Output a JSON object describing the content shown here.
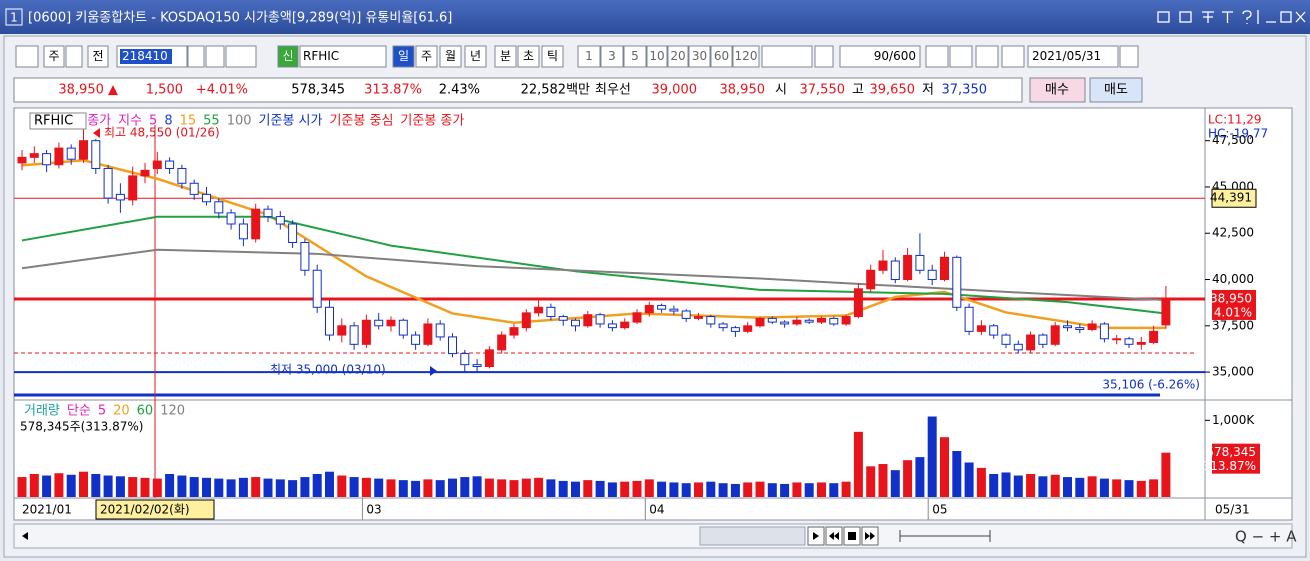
{
  "window": {
    "number": "1",
    "title": "[0600] 키움종합차트 - KOSDAQ150 시가총액[9,289(억)] 유통비율[61.6]"
  },
  "toolbar": {
    "buttons": [
      "주",
      "전"
    ],
    "code": "218410",
    "new": "신",
    "name": "RFHIC",
    "periods": [
      "일",
      "주",
      "월",
      "년",
      "분",
      "초",
      "틱"
    ],
    "intervals": [
      "1",
      "3",
      "5",
      "10",
      "20",
      "30",
      "60",
      "120"
    ],
    "count": "90/600",
    "date": "2021/05/31"
  },
  "quote": {
    "price": "38,950 ▲",
    "change": "1,500",
    "rate": "+4.01%",
    "volume": "578,345",
    "volume_ratio": "313.87%",
    "turnover": "2.43%",
    "amount": "22,582백만",
    "best_label": "최우선",
    "ask": "39,000",
    "bid": "38,950",
    "open_label": "시",
    "open": "37,550",
    "high_label": "고",
    "high": "39,650",
    "low_label": "저",
    "low": "37,350",
    "buy": "매수",
    "sell": "매도"
  },
  "chart_data": [
    {
      "type": "candlestick",
      "up_color": "#e8141c",
      "down_color": "#1030c8",
      "legend": [
        {
          "label": "RFHIC",
          "color": "#000000"
        },
        {
          "label": "종가",
          "color": "#e020c0"
        },
        {
          "label": "지수",
          "color": "#e020c0"
        },
        {
          "label": "5",
          "color": "#e020c0"
        },
        {
          "label": "8",
          "color": "#2040e0"
        },
        {
          "label": "15",
          "color": "#f0a020"
        },
        {
          "label": "55",
          "color": "#20a040"
        },
        {
          "label": "100",
          "color": "#808080"
        },
        {
          "label": "기준봉 시가",
          "color": "#1030c8"
        },
        {
          "label": "기준봉 중심",
          "color": "#e8141c"
        },
        {
          "label": "기준봉 종가",
          "color": "#e8141c"
        }
      ],
      "annotations": {
        "high": "최고 48,550 (01/26)",
        "low": "최저 35,000 (03/10)",
        "target": "35,106 (-6.26%)",
        "lc": "LC:11,29",
        "hc": "HC:-19,77"
      },
      "crosshair_label": "2021/02/02(화)",
      "ylim": [
        33600,
        49050
      ],
      "yticks": [
        {
          "value": 35000,
          "label": "35,000"
        },
        {
          "value": 37500,
          "label": "37,500"
        },
        {
          "value": 40000,
          "label": "40,000"
        },
        {
          "value": 42500,
          "label": "42,500"
        },
        {
          "value": 45000,
          "label": "45,000"
        },
        {
          "value": 47500,
          "label": "47,500"
        }
      ],
      "reference": {
        "value": 44391,
        "label": "44,391"
      },
      "current": {
        "value": 38950,
        "label": "38,950",
        "rate": "4.01%"
      },
      "x_labels": [
        {
          "index": 0,
          "label": "2021/01"
        },
        {
          "index": 28,
          "label": "03"
        },
        {
          "index": 51,
          "label": "04"
        },
        {
          "index": 74,
          "label": "05"
        }
      ],
      "last_label": "05/31",
      "candles": [
        [
          46300,
          47000,
          45900,
          46600
        ],
        [
          46600,
          47200,
          46300,
          46800
        ],
        [
          46800,
          47000,
          45800,
          46200
        ],
        [
          46200,
          47400,
          46000,
          47100
        ],
        [
          47100,
          47300,
          46200,
          46500
        ],
        [
          46500,
          48550,
          46300,
          47500
        ],
        [
          47500,
          47600,
          45700,
          46000
        ],
        [
          46000,
          46200,
          44100,
          44400
        ],
        [
          44600,
          45200,
          43600,
          44300
        ],
        [
          44300,
          46100,
          44000,
          45600
        ],
        [
          45600,
          46300,
          45200,
          45900
        ],
        [
          46000,
          46900,
          45700,
          46400
        ],
        [
          46400,
          46600,
          45700,
          46000
        ],
        [
          46000,
          46200,
          44900,
          45200
        ],
        [
          45200,
          45400,
          44300,
          44600
        ],
        [
          44600,
          45000,
          44000,
          44200
        ],
        [
          44200,
          44400,
          43300,
          43600
        ],
        [
          43600,
          43800,
          42700,
          43000
        ],
        [
          43000,
          43300,
          41800,
          42200
        ],
        [
          42200,
          44100,
          42000,
          43800
        ],
        [
          43800,
          44000,
          43100,
          43400
        ],
        [
          43400,
          43700,
          42700,
          43000
        ],
        [
          43000,
          43200,
          41700,
          42000
        ],
        [
          42000,
          42200,
          40200,
          40500
        ],
        [
          40500,
          40800,
          38200,
          38500
        ],
        [
          38500,
          38900,
          36700,
          37000
        ],
        [
          37000,
          37900,
          36600,
          37500
        ],
        [
          37500,
          37700,
          36200,
          36500
        ],
        [
          36500,
          38100,
          36300,
          37800
        ],
        [
          37800,
          38200,
          37300,
          37500
        ],
        [
          37500,
          38000,
          37200,
          37800
        ],
        [
          37800,
          37900,
          36800,
          37000
        ],
        [
          37000,
          37200,
          36200,
          36500
        ],
        [
          36500,
          37900,
          36400,
          37600
        ],
        [
          37600,
          37800,
          36700,
          36900
        ],
        [
          36900,
          37100,
          35800,
          36000
        ],
        [
          36000,
          36200,
          35000,
          35400
        ],
        [
          35400,
          35700,
          35000,
          35300
        ],
        [
          35300,
          36400,
          35200,
          36200
        ],
        [
          36200,
          37200,
          36000,
          37000
        ],
        [
          37000,
          37600,
          36800,
          37400
        ],
        [
          37400,
          38400,
          37200,
          38200
        ],
        [
          38200,
          38900,
          38000,
          38500
        ],
        [
          38500,
          38700,
          37800,
          38000
        ],
        [
          38000,
          38100,
          37500,
          37800
        ],
        [
          37800,
          37900,
          37200,
          37500
        ],
        [
          37500,
          38300,
          37400,
          38100
        ],
        [
          38100,
          38200,
          37400,
          37600
        ],
        [
          37600,
          37800,
          37200,
          37400
        ],
        [
          37400,
          37900,
          37300,
          37700
        ],
        [
          37700,
          38400,
          37600,
          38200
        ],
        [
          38200,
          38800,
          38000,
          38600
        ],
        [
          38600,
          38700,
          38200,
          38400
        ],
        [
          38400,
          38600,
          38100,
          38300
        ],
        [
          38300,
          38400,
          37700,
          37900
        ],
        [
          37900,
          38200,
          37800,
          38000
        ],
        [
          38000,
          38100,
          37400,
          37600
        ],
        [
          37600,
          37700,
          37200,
          37400
        ],
        [
          37400,
          37500,
          36900,
          37200
        ],
        [
          37200,
          37700,
          37100,
          37500
        ],
        [
          37500,
          38000,
          37400,
          37900
        ],
        [
          37900,
          38000,
          37600,
          37700
        ],
        [
          37700,
          37800,
          37400,
          37600
        ],
        [
          37600,
          38000,
          37500,
          37800
        ],
        [
          37800,
          37900,
          37600,
          37700
        ],
        [
          37700,
          38000,
          37600,
          37900
        ],
        [
          37900,
          38000,
          37500,
          37600
        ],
        [
          37600,
          38100,
          37500,
          38000
        ],
        [
          38000,
          39800,
          37900,
          39500
        ],
        [
          39500,
          40800,
          39300,
          40500
        ],
        [
          40500,
          41600,
          40300,
          41000
        ],
        [
          41000,
          41200,
          39800,
          40000
        ],
        [
          40000,
          41700,
          39900,
          41300
        ],
        [
          41300,
          42500,
          40300,
          40500
        ],
        [
          40500,
          40800,
          39700,
          40000
        ],
        [
          40000,
          41500,
          39900,
          41200
        ],
        [
          41200,
          41300,
          38300,
          38500
        ],
        [
          38500,
          38700,
          37000,
          37200
        ],
        [
          37200,
          37800,
          37000,
          37500
        ],
        [
          37500,
          37600,
          36800,
          37000
        ],
        [
          37000,
          37100,
          36300,
          36500
        ],
        [
          36500,
          36700,
          36000,
          36200
        ],
        [
          36200,
          37200,
          36000,
          37000
        ],
        [
          37000,
          37100,
          36300,
          36500
        ],
        [
          36500,
          37700,
          36400,
          37500
        ],
        [
          37500,
          37800,
          37200,
          37400
        ],
        [
          37400,
          37600,
          37100,
          37300
        ],
        [
          37300,
          37800,
          37200,
          37600
        ],
        [
          37600,
          37700,
          36600,
          36800
        ],
        [
          36800,
          37000,
          36500,
          36800
        ],
        [
          36800,
          36900,
          36300,
          36500
        ],
        [
          36500,
          36900,
          36200,
          36600
        ],
        [
          36600,
          37500,
          36500,
          37200
        ],
        [
          37550,
          39650,
          37350,
          38950
        ]
      ],
      "ma_lines": [
        {
          "color": "#f0a020",
          "x": [
            0,
            5,
            11,
            20,
            28,
            35,
            40,
            50,
            60,
            67,
            71,
            75,
            80,
            88,
            93
          ],
          "values": [
            46167,
            46444,
            45444,
            43500,
            40167,
            38167,
            37667,
            38167,
            37944,
            38056,
            39056,
            39333,
            38222,
            37389,
            37389
          ]
        },
        {
          "color": "#20a040",
          "x": [
            0,
            11,
            20,
            30,
            45,
            60,
            75,
            85,
            93
          ],
          "values": [
            42111,
            43389,
            43389,
            41833,
            40444,
            39444,
            39222,
            38778,
            38167
          ]
        },
        {
          "color": "#808080",
          "x": [
            0,
            11,
            24,
            37,
            60,
            80,
            93
          ],
          "values": [
            40611,
            41611,
            41389,
            40722,
            40055,
            39333,
            38889
          ]
        }
      ]
    },
    {
      "type": "bar",
      "legend": [
        {
          "label": "거래량",
          "color": "#20a0a0"
        },
        {
          "label": "단순",
          "color": "#e020c0"
        },
        {
          "label": "5",
          "color": "#e020c0"
        },
        {
          "label": "20",
          "color": "#f0a020"
        },
        {
          "label": "60",
          "color": "#20a040"
        },
        {
          "label": "120",
          "color": "#808080"
        }
      ],
      "info": "578,345주(313.87%)",
      "ylim": [
        0,
        1200000
      ],
      "yticks": [
        {
          "value": 1000000,
          "label": "1,000K"
        }
      ],
      "current": {
        "label": "578,345",
        "rate": "313.87%"
      },
      "values": [
        260000,
        300000,
        280000,
        310000,
        290000,
        330000,
        300000,
        280000,
        270000,
        260000,
        250000,
        240000,
        300000,
        280000,
        260000,
        250000,
        240000,
        230000,
        250000,
        260000,
        240000,
        230000,
        220000,
        260000,
        300000,
        330000,
        280000,
        260000,
        250000,
        240000,
        230000,
        220000,
        210000,
        230000,
        220000,
        240000,
        260000,
        270000,
        240000,
        230000,
        220000,
        240000,
        250000,
        230000,
        210000,
        200000,
        220000,
        210000,
        190000,
        200000,
        210000,
        230000,
        200000,
        190000,
        180000,
        190000,
        200000,
        180000,
        170000,
        190000,
        200000,
        180000,
        170000,
        190000,
        180000,
        190000,
        180000,
        200000,
        850000,
        400000,
        430000,
        350000,
        480000,
        520000,
        1050000,
        780000,
        600000,
        450000,
        380000,
        300000,
        320000,
        280000,
        300000,
        270000,
        290000,
        260000,
        250000,
        270000,
        240000,
        230000,
        220000,
        210000,
        230000,
        578345
      ]
    }
  ]
}
